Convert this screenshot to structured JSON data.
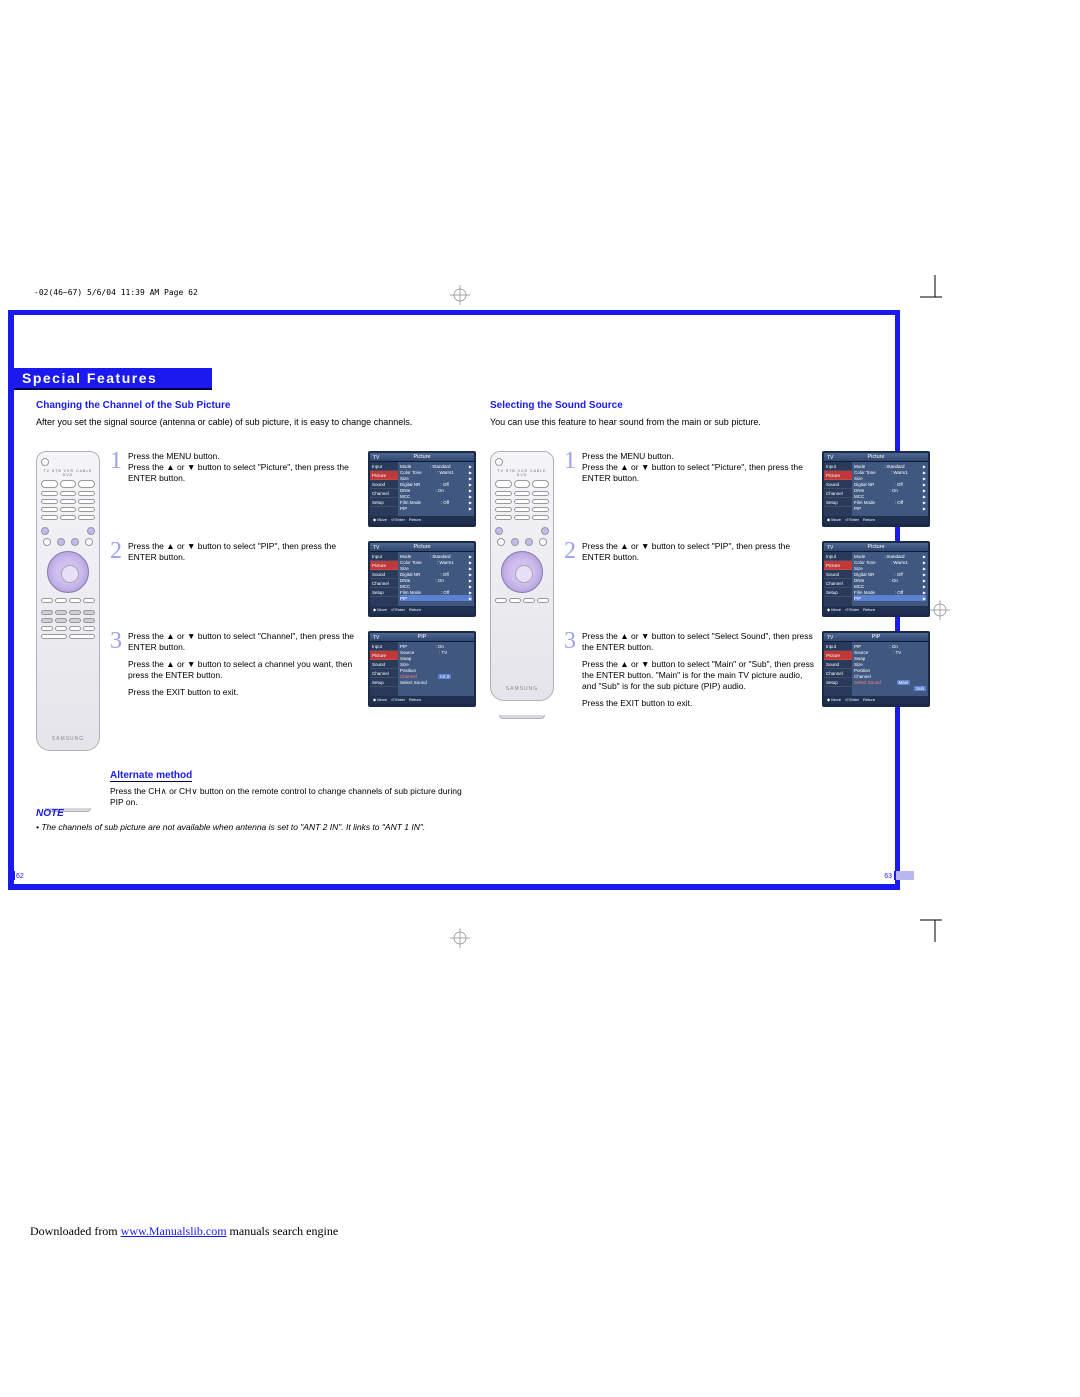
{
  "crop_header": "-02(46~67)  5/6/04  11:39 AM  Page 62",
  "title": "Special Features",
  "left": {
    "subhead": "Changing the Channel of the Sub Picture",
    "intro": "After you set the signal source (antenna or cable) of sub picture, it is easy to change channels.",
    "steps": [
      {
        "n": "1",
        "p1": "Press the MENU button.\nPress the ▲ or ▼ button to select \"Picture\", then press the ENTER button."
      },
      {
        "n": "2",
        "p1": "Press the ▲ or ▼ button to select \"PIP\", then press the ENTER button."
      },
      {
        "n": "3",
        "p1": "Press the ▲ or ▼ button to select \"Channel\", then press the ENTER button.",
        "p2": "Press the ▲ or ▼ button to select a channel you want, then press the ENTER button.",
        "p3": "Press the EXIT button to exit."
      }
    ],
    "alt_title": "Alternate method",
    "alt_text": "Press the CH∧ or CH∨ button on the remote control to change channels of sub picture during PIP on.",
    "osd": [
      {
        "title": "Picture",
        "side": [
          "Input",
          "Picture",
          "Sound",
          "Channel",
          "Setup"
        ],
        "active": 1,
        "rows": [
          [
            "Mode",
            ": Standard",
            "▶"
          ],
          [
            "Color Tone",
            ": Warm1",
            "▶"
          ],
          [
            "Size",
            "",
            "▶"
          ],
          [
            "Digital NR",
            ": Off",
            "▶"
          ],
          [
            "DNIe",
            ": On",
            "▶"
          ],
          [
            "MCC",
            "",
            "▶"
          ],
          [
            "Film Mode",
            ": Off",
            "▶"
          ],
          [
            "PIP",
            "",
            "▶"
          ]
        ]
      },
      {
        "title": "Picture",
        "side": [
          "Input",
          "Picture",
          "Sound",
          "Channel",
          "Setup"
        ],
        "active": 1,
        "rows": [
          [
            "Mode",
            ": Standard",
            "▶"
          ],
          [
            "Color Tone",
            ": Warm1",
            "▶"
          ],
          [
            "Size",
            "",
            "▶"
          ],
          [
            "Digital NR",
            ": Off",
            "▶"
          ],
          [
            "DNIe",
            ": On",
            "▶"
          ],
          [
            "MCC",
            "",
            "▶"
          ],
          [
            "Film Mode",
            ": Off",
            "▶"
          ],
          [
            "PIP",
            "",
            "▶"
          ]
        ],
        "sel": 7
      },
      {
        "title": "PIP",
        "side": [
          "Input",
          "Picture",
          "Sound",
          "Channel",
          "Setup"
        ],
        "active": 1,
        "rows": [
          [
            "PIP",
            ": On",
            ""
          ],
          [
            "Source",
            ": TV",
            ""
          ],
          [
            "Swap",
            "",
            ""
          ],
          [
            "Size",
            "",
            ""
          ],
          [
            "Position",
            "",
            ""
          ],
          [
            "Channel",
            "Air 3",
            ""
          ],
          [
            "Select Sound",
            "",
            ""
          ]
        ],
        "selbox": 5,
        "hl": 5
      }
    ]
  },
  "right": {
    "subhead": "Selecting the Sound Source",
    "intro": "You can use this feature to hear sound from the main or sub picture.",
    "steps": [
      {
        "n": "1",
        "p1": "Press the MENU button.\nPress the ▲ or ▼ button to select \"Picture\", then press the ENTER button."
      },
      {
        "n": "2",
        "p1": "Press the ▲ or ▼ button to select \"PIP\", then press the ENTER button."
      },
      {
        "n": "3",
        "p1": "Press the ▲ or ▼ button to select \"Select Sound\", then press the ENTER button.",
        "p2": "Press the ▲ or ▼ button to select \"Main\" or \"Sub\", then press the ENTER button. \"Main\" is for the main TV picture audio, and \"Sub\" is for the sub picture (PIP) audio.",
        "p3": "Press the EXIT button to exit."
      }
    ],
    "osd": [
      {
        "title": "Picture",
        "side": [
          "Input",
          "Picture",
          "Sound",
          "Channel",
          "Setup"
        ],
        "active": 1,
        "rows": [
          [
            "Mode",
            ": Standard",
            "▶"
          ],
          [
            "Color Tone",
            ": Warm1",
            "▶"
          ],
          [
            "Size",
            "",
            "▶"
          ],
          [
            "Digital NR",
            ": Off",
            "▶"
          ],
          [
            "DNIe",
            ": On",
            "▶"
          ],
          [
            "MCC",
            "",
            "▶"
          ],
          [
            "Film Mode",
            ": Off",
            "▶"
          ],
          [
            "PIP",
            "",
            "▶"
          ]
        ]
      },
      {
        "title": "Picture",
        "side": [
          "Input",
          "Picture",
          "Sound",
          "Channel",
          "Setup"
        ],
        "active": 1,
        "rows": [
          [
            "Mode",
            ": Standard",
            "▶"
          ],
          [
            "Color Tone",
            ": Warm1",
            "▶"
          ],
          [
            "Size",
            "",
            "▶"
          ],
          [
            "Digital NR",
            ": Off",
            "▶"
          ],
          [
            "DNIe",
            ": On",
            "▶"
          ],
          [
            "MCC",
            "",
            "▶"
          ],
          [
            "Film Mode",
            ": Off",
            "▶"
          ],
          [
            "PIP",
            "",
            "▶"
          ]
        ],
        "sel": 7
      },
      {
        "title": "PIP",
        "side": [
          "Input",
          "Picture",
          "Sound",
          "Channel",
          "Setup"
        ],
        "active": 1,
        "rows": [
          [
            "PIP",
            ": On",
            ""
          ],
          [
            "Source",
            ": TV",
            ""
          ],
          [
            "Swap",
            "",
            ""
          ],
          [
            "Size",
            "",
            ""
          ],
          [
            "Position",
            "",
            ""
          ],
          [
            "Channel",
            "",
            ""
          ],
          [
            "Select Sound",
            "Main",
            ""
          ]
        ],
        "selbox": 6,
        "hl": 6,
        "extra": "Sub"
      }
    ]
  },
  "note_title": "NOTE",
  "note_item": "The channels of sub picture are not available when antenna is set to \"ANT 2 IN\". It links to \"ANT 1 IN\".",
  "page_left": "62",
  "page_right": "63",
  "remote_brand": "SAMSUNG",
  "footer_pre": "Downloaded from ",
  "footer_link": "www.Manualslib.com",
  "footer_post": " manuals search engine",
  "colors": {
    "blue": "#1a1af0",
    "osd_bg": "#1a2a4a",
    "osd_active": "#c03838",
    "osd_sel": "#5a82d0"
  }
}
